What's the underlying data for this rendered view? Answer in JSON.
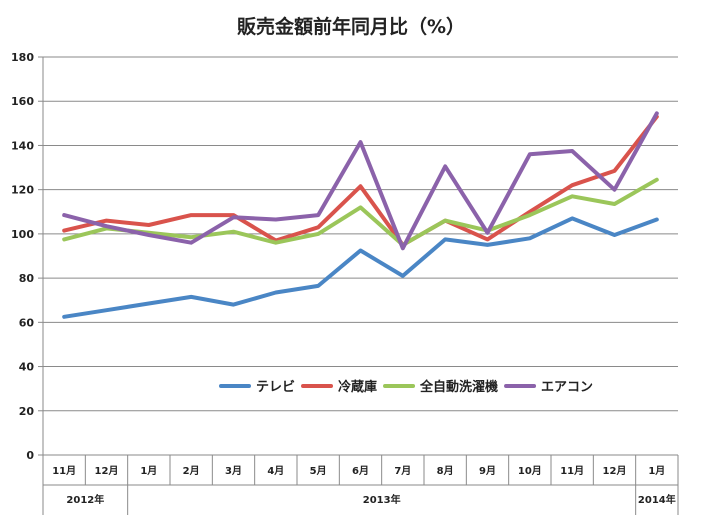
{
  "chart_data": {
    "type": "line",
    "title": "販売金額前年同月比（%）",
    "ylim": [
      0,
      180
    ],
    "yticks": [
      0,
      20,
      40,
      60,
      80,
      100,
      120,
      140,
      160,
      180
    ],
    "grid": true,
    "legend_position": "lower-right",
    "categories": [
      "11月",
      "12月",
      "1月",
      "2月",
      "3月",
      "4月",
      "5月",
      "6月",
      "7月",
      "8月",
      "9月",
      "10月",
      "11月",
      "12月",
      "1月"
    ],
    "year_groups": [
      {
        "label": "2012年",
        "span": 2
      },
      {
        "label": "2013年",
        "span": 12
      },
      {
        "label": "2014年",
        "span": 1
      }
    ],
    "series": [
      {
        "name": "テレビ",
        "color": "#4A86C5",
        "values": [
          62.5,
          65.5,
          68.5,
          71.5,
          68,
          73.5,
          76.5,
          92.5,
          81,
          97.5,
          95,
          98,
          107,
          99.5,
          106.5
        ]
      },
      {
        "name": "冷蔵庫",
        "color": "#D9534C",
        "values": [
          101.5,
          106,
          104,
          108.5,
          108.5,
          97,
          103,
          121.5,
          95,
          106,
          97.5,
          110,
          122,
          128.5,
          153
        ]
      },
      {
        "name": "全自動洗濯機",
        "color": "#9BC65A",
        "values": [
          97.5,
          102.5,
          100.5,
          98.5,
          101,
          96,
          100,
          112,
          95,
          106,
          101.5,
          108.5,
          117,
          113.5,
          124.5
        ]
      },
      {
        "name": "エアコン",
        "color": "#8B62AA",
        "values": [
          108.5,
          103.5,
          99.5,
          96,
          107.5,
          106.5,
          108.5,
          141.5,
          93.5,
          130.5,
          100.5,
          136,
          137.5,
          120,
          154.5
        ]
      }
    ]
  }
}
